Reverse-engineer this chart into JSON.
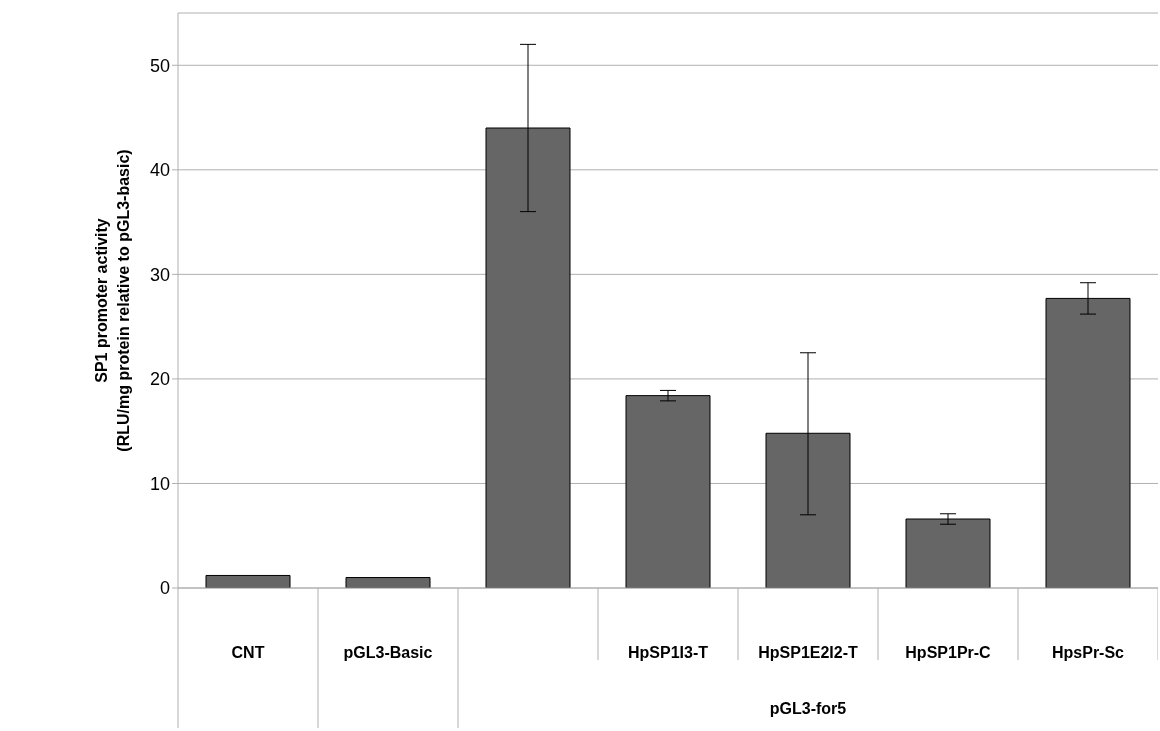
{
  "chart_data": {
    "type": "bar",
    "ylabel": "SP1 promoter activity\n(RLU/mg protein relative to pGL3-basic)",
    "categories": [
      "CNT",
      "pGL3-Basic",
      null,
      "HpSP1I3-T",
      "HpSP1E2I2-T",
      "HpSP1Pr-C",
      "HpsPr-Sc"
    ],
    "values": [
      1.2,
      1.0,
      44,
      18.4,
      14.8,
      6.6,
      27.7
    ],
    "errors": [
      null,
      null,
      [
        36,
        52
      ],
      [
        17.9,
        18.9
      ],
      [
        7,
        22.5
      ],
      [
        6.1,
        7.1
      ],
      [
        26.2,
        29.2
      ]
    ],
    "color": "#666666",
    "annotations": [
      "pGL3-for5"
    ],
    "ylim": [
      0,
      55
    ],
    "yticks": [
      0,
      10,
      20,
      30,
      40,
      50
    ],
    "grid": "y"
  }
}
